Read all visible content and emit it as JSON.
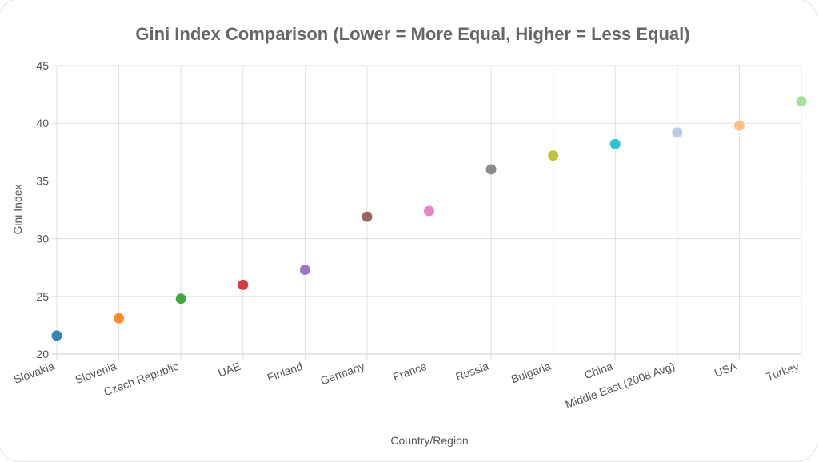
{
  "chart_data": {
    "type": "scatter",
    "title": "Gini Index Comparison (Lower = More Equal, Higher = Less Equal)",
    "xlabel": "Country/Region",
    "ylabel": "Gini Index",
    "ylim": [
      20,
      45
    ],
    "yticks": [
      20,
      25,
      30,
      35,
      40,
      45
    ],
    "grid": true,
    "legend": "none",
    "categories": [
      "Slovakia",
      "Slovenia",
      "Czech Republic",
      "UAE",
      "Finland",
      "Germany",
      "France",
      "Russia",
      "Bulgaria",
      "China",
      "Middle East (2008 Avg)",
      "USA",
      "Turkey"
    ],
    "values": [
      21.6,
      23.1,
      24.8,
      26.0,
      27.3,
      31.9,
      32.4,
      36.0,
      37.2,
      38.2,
      39.2,
      39.8,
      41.9
    ],
    "colors": [
      "#1f77b4",
      "#ff7f0e",
      "#2ca02c",
      "#d62728",
      "#9467bd",
      "#8c564b",
      "#e377c2",
      "#7f7f7f",
      "#bcbd22",
      "#17becf",
      "#aec7e8",
      "#ffbb78",
      "#98df8a"
    ]
  }
}
